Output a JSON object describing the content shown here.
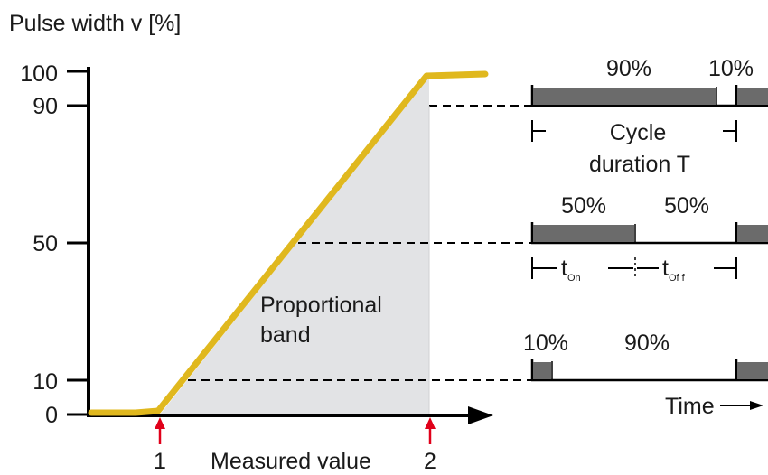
{
  "y_axis": {
    "label": "Pulse width v [%]",
    "ticks": [
      "100",
      "90",
      "50",
      "10",
      "0"
    ]
  },
  "x_axis": {
    "label": "Measured value",
    "marker_1": "1",
    "marker_2": "2"
  },
  "band_label_line1": "Proportional",
  "band_label_line2": "band",
  "pulse_90": {
    "on_label": "90%",
    "off_label": "10%"
  },
  "cycle_label_line1": "Cycle",
  "cycle_label_line2": "duration T",
  "pulse_50": {
    "on_label": "50%",
    "off_label": "50%"
  },
  "t_on": {
    "main": "t",
    "sub": "On"
  },
  "t_off": {
    "main": "t",
    "sub": "Of f"
  },
  "pulse_10": {
    "on_label": "10%",
    "off_label": "90%"
  },
  "time_label": "Time",
  "colors": {
    "curve": "#e0b81e",
    "band_fill": "#e2e3e5",
    "pulse_fill": "#6b6b6b",
    "marker": "#e0001a",
    "axis": "#000000"
  }
}
